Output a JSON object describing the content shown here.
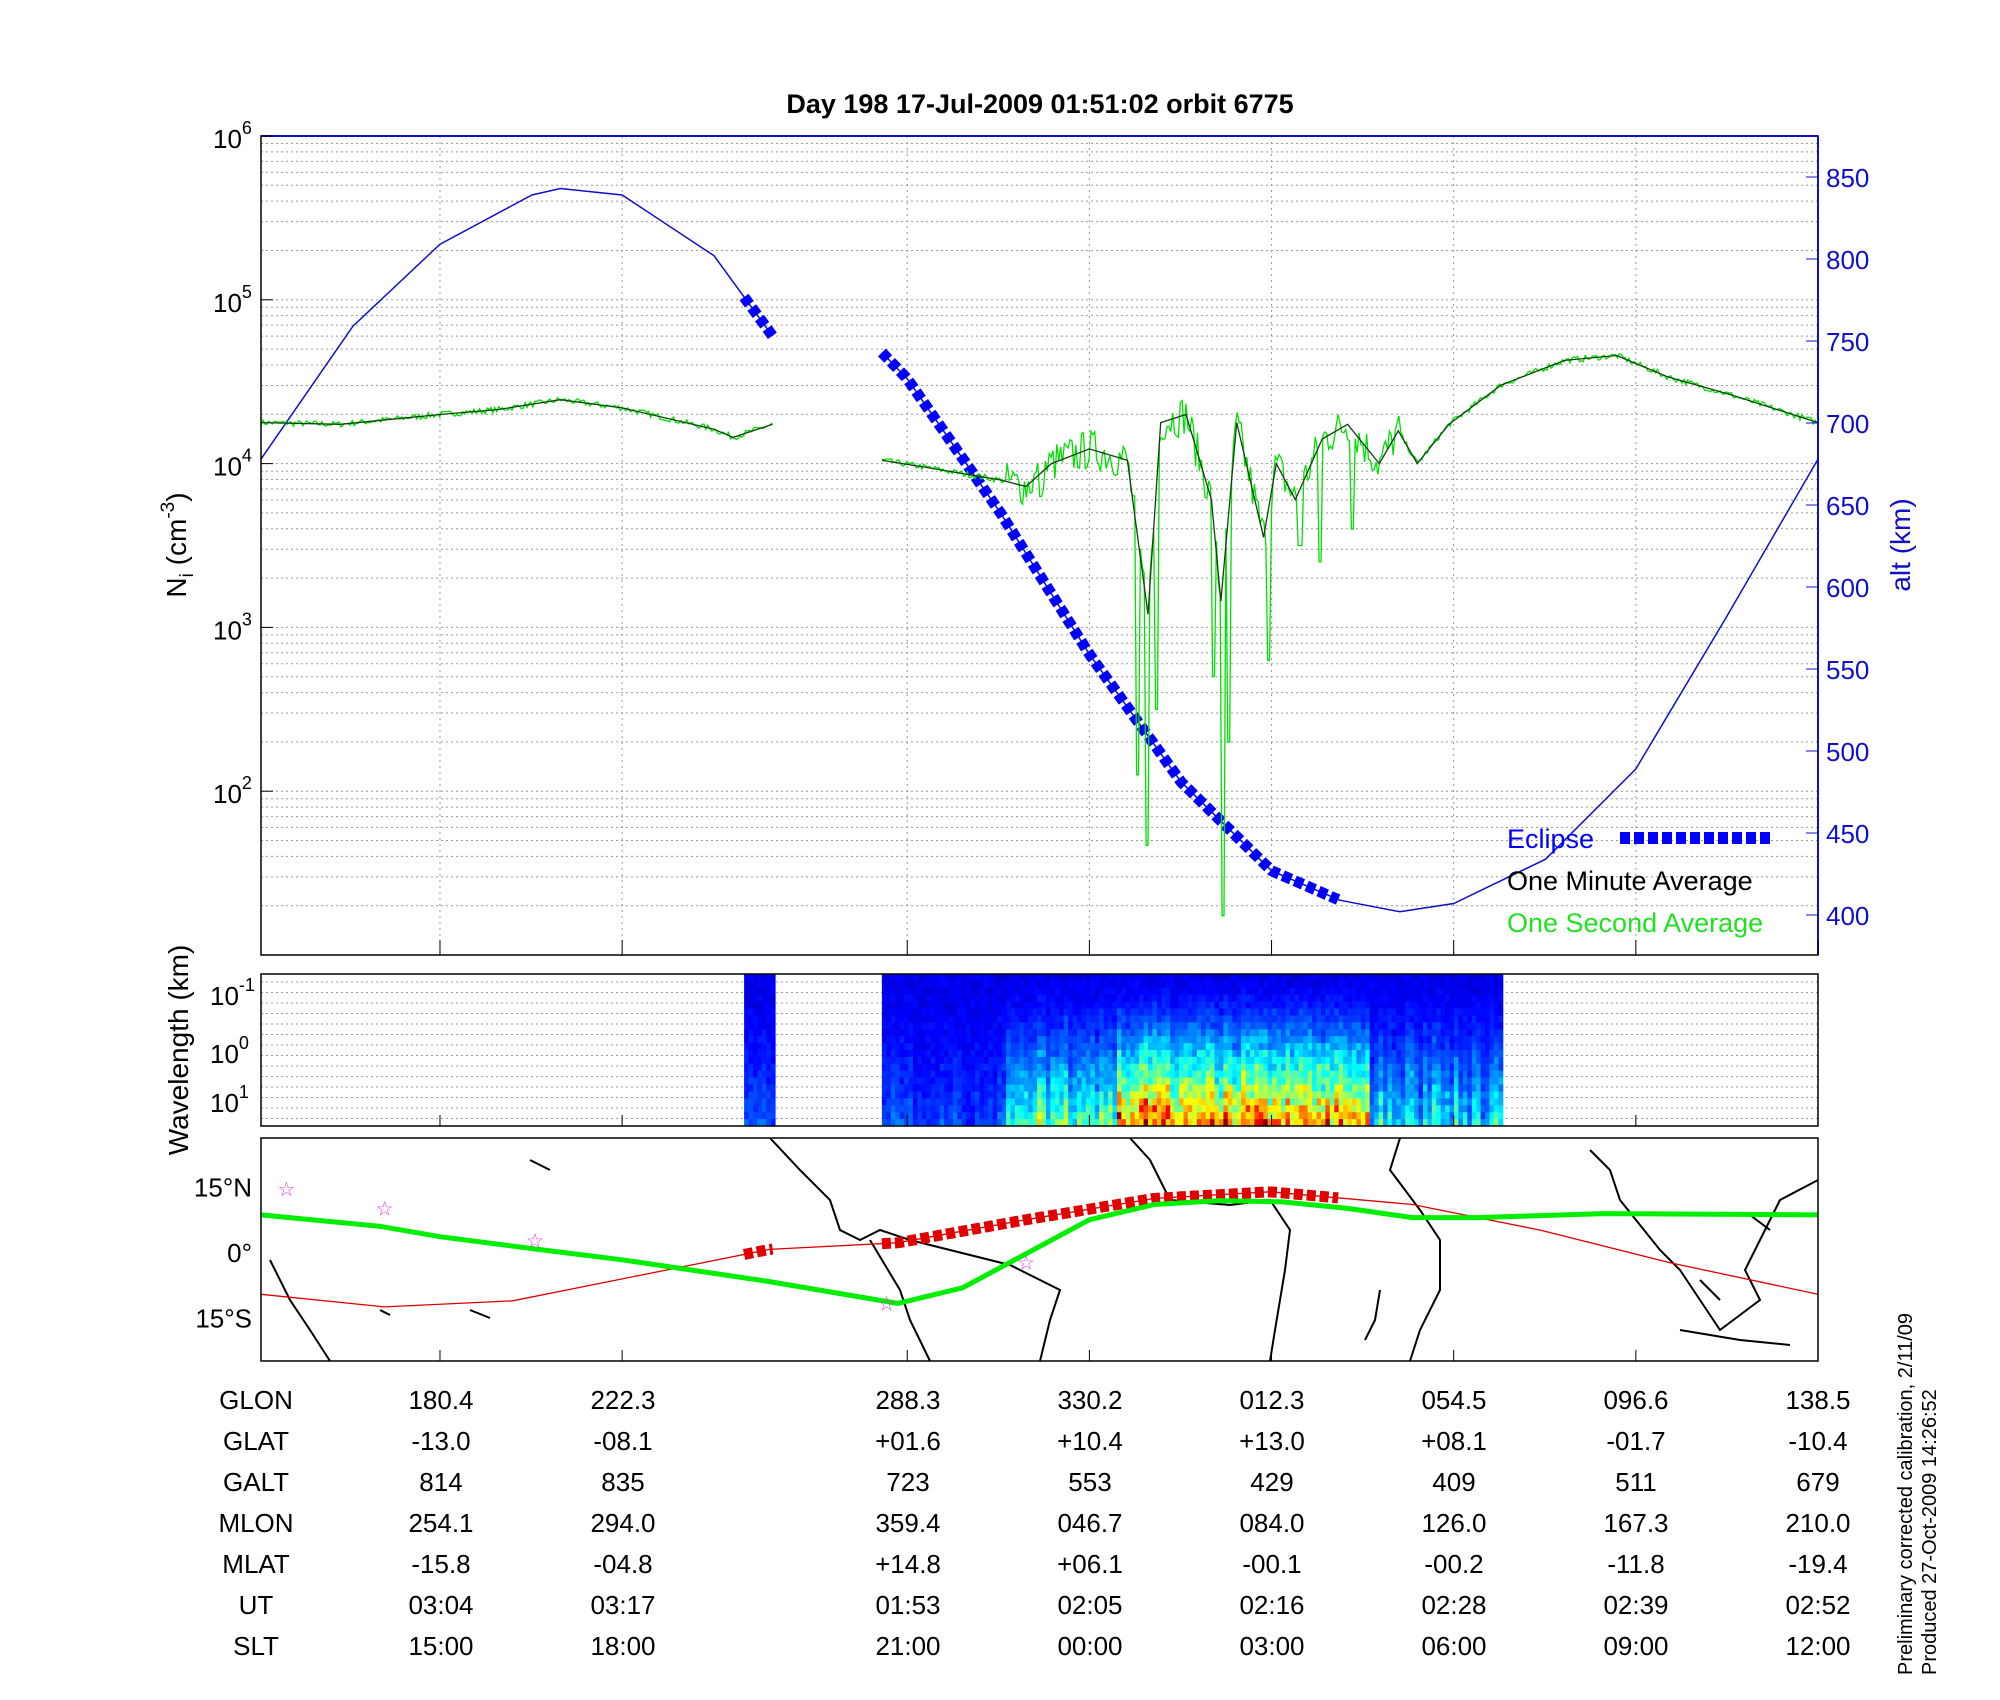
{
  "title": "Day 198  17-Jul-2009 01:51:02   orbit 6775",
  "footer": {
    "line1": "Preliminary corrected calibration, 2/11/09",
    "line2": "Produced 27-Oct-2009 14:26:52"
  },
  "colors": {
    "altitude": "#1010c8",
    "eclipse": "#0000ff",
    "minute_avg": "#000000",
    "second_avg": "#00e000",
    "track_green": "#00ee00",
    "track_red": "#e00000",
    "star": "#e040e0"
  },
  "table": {
    "row_labels": [
      "GLON",
      "GLAT",
      "GALT",
      "MLON",
      "MLAT",
      "UT",
      "SLT"
    ],
    "columns": [
      [
        "180.4",
        "-13.0",
        "814",
        "254.1",
        "-15.8",
        "03:04",
        "15:00"
      ],
      [
        "222.3",
        "-08.1",
        "835",
        "294.0",
        "-04.8",
        "03:17",
        "18:00"
      ],
      [
        "288.3",
        "+01.6",
        "723",
        "359.4",
        "+14.8",
        "01:53",
        "21:00"
      ],
      [
        "330.2",
        "+10.4",
        "553",
        "046.7",
        "+06.1",
        "02:05",
        "00:00"
      ],
      [
        "012.3",
        "+13.0",
        "429",
        "084.0",
        "-00.1",
        "02:16",
        "03:00"
      ],
      [
        "054.5",
        "+08.1",
        "409",
        "126.0",
        "-00.2",
        "02:28",
        "06:00"
      ],
      [
        "096.6",
        "-01.7",
        "511",
        "167.3",
        "-11.8",
        "02:39",
        "09:00"
      ],
      [
        "138.5",
        "-10.4",
        "679",
        "210.0",
        "-19.4",
        "02:52",
        "12:00"
      ]
    ]
  },
  "chart_data": [
    {
      "type": "line",
      "title": "Day 198  17-Jul-2009 01:51:02   orbit 6775",
      "x_units": "minutes from plot start",
      "xlim": [
        0,
        98.3
      ],
      "x_ticks": [
        11.3,
        22.8,
        40.8,
        52.3,
        63.8,
        75.3,
        86.8,
        98.3
      ],
      "ylabel": "N",
      "ylabel_sub": "i",
      "ylabel_unit": " (cm",
      "ylabel_exp": "-3",
      "ylabel_close": ")",
      "y_scale": "log",
      "ylim_log10": [
        1,
        6
      ],
      "y_ticks": [
        {
          "base": "10",
          "exp": "2",
          "log": 2
        },
        {
          "base": "10",
          "exp": "3",
          "log": 3
        },
        {
          "base": "10",
          "exp": "4",
          "log": 4
        },
        {
          "base": "10",
          "exp": "5",
          "log": 5
        },
        {
          "base": "10",
          "exp": "6",
          "log": 6
        }
      ],
      "y2label": "alt (km)",
      "y2lim": [
        376,
        875
      ],
      "y2_ticks": [
        "400",
        "450",
        "500",
        "550",
        "600",
        "650",
        "700",
        "750",
        "800",
        "850"
      ],
      "legend": {
        "placement": "bottom-right",
        "entries": [
          "Eclipse",
          "One Minute Average",
          "One Second Average"
        ]
      },
      "altitude_km": [
        [
          0,
          678
        ],
        [
          5.8,
          759
        ],
        [
          11.3,
          809
        ],
        [
          17.1,
          839
        ],
        [
          18.9,
          843
        ],
        [
          22.8,
          839
        ],
        [
          28.6,
          802
        ],
        [
          32.3,
          753
        ],
        [
          36,
          748
        ],
        [
          39.2,
          743
        ],
        [
          40.8,
          727
        ],
        [
          46.7,
          645
        ],
        [
          52.3,
          559
        ],
        [
          58.1,
          481
        ],
        [
          63.8,
          427
        ],
        [
          68.1,
          409
        ],
        [
          71.9,
          402
        ],
        [
          75.3,
          407
        ],
        [
          81.1,
          434
        ],
        [
          86.8,
          489
        ],
        [
          92.6,
          583
        ],
        [
          98.3,
          678
        ]
      ],
      "altitude_gap": [
        32.3,
        39.2
      ],
      "eclipse_segments": [
        [
          30.5,
          32.3
        ],
        [
          39.2,
          68.1
        ]
      ],
      "minute_avg_log10": [
        [
          [
            0,
            4.25
          ],
          [
            5,
            4.24
          ],
          [
            11.3,
            4.3
          ],
          [
            15,
            4.33
          ],
          [
            18.9,
            4.39
          ],
          [
            22.8,
            4.34
          ],
          [
            28.6,
            4.21
          ],
          [
            29.8,
            4.16
          ],
          [
            32.3,
            4.24
          ]
        ],
        [
          [
            39.2,
            4.02
          ],
          [
            41.8,
            3.98
          ],
          [
            46.7,
            3.9
          ],
          [
            48.3,
            3.86
          ],
          [
            49.9,
            4.0
          ],
          [
            52.3,
            4.09
          ],
          [
            54.7,
            4.02
          ],
          [
            56,
            3.08
          ],
          [
            56.8,
            4.25
          ],
          [
            58.4,
            4.3
          ],
          [
            60,
            3.78
          ],
          [
            60.6,
            3.16
          ],
          [
            61.6,
            4.25
          ],
          [
            63.3,
            3.55
          ],
          [
            64.1,
            4.0
          ],
          [
            65.3,
            3.78
          ],
          [
            67,
            4.15
          ],
          [
            68.6,
            4.24
          ],
          [
            70.6,
            4.0
          ],
          [
            71.8,
            4.2
          ],
          [
            73,
            4.0
          ],
          [
            75,
            4.24
          ],
          [
            78.3,
            4.48
          ],
          [
            82.3,
            4.63
          ],
          [
            85.6,
            4.66
          ],
          [
            88.8,
            4.53
          ],
          [
            92.8,
            4.42
          ],
          [
            98.3,
            4.25
          ]
        ]
      ],
      "second_avg_spikes_log10": [
        [
          49.2,
          3.8
        ],
        [
          55.3,
          2.1
        ],
        [
          55.9,
          1.67
        ],
        [
          56.5,
          2.5
        ],
        [
          60.1,
          2.7
        ],
        [
          60.7,
          1.24
        ],
        [
          61.1,
          2.3
        ],
        [
          63.6,
          2.8
        ],
        [
          65.6,
          3.5
        ],
        [
          66.9,
          3.4
        ],
        [
          68.9,
          3.6
        ]
      ]
    },
    {
      "type": "heatmap",
      "ylabel": "Wavelength (km)",
      "y_ticks": [
        {
          "base": "10",
          "exp": "-1"
        },
        {
          "base": "10",
          "exp": "0"
        },
        {
          "base": "10",
          "exp": "1"
        }
      ],
      "segments": [
        [
          30.5,
          32.3
        ],
        [
          39.2,
          78.4
        ]
      ],
      "high_activity_range": [
        54,
        70
      ],
      "colormap": "jet"
    },
    {
      "type": "line",
      "ylabel_ticks": [
        "15°N",
        "0°",
        "15°S"
      ],
      "ylim_deg": [
        -20,
        20
      ],
      "green_track_lat": [
        [
          0,
          8.5
        ],
        [
          7.5,
          5.9
        ],
        [
          11.3,
          3.5
        ],
        [
          17.5,
          0.6
        ],
        [
          22.8,
          -1.8
        ],
        [
          32.1,
          -6.8
        ],
        [
          40.2,
          -11.8
        ],
        [
          44.3,
          -8.2
        ],
        [
          52.3,
          7.4
        ],
        [
          56.4,
          10.9
        ],
        [
          60.5,
          11.8
        ],
        [
          64.5,
          11.5
        ],
        [
          68.6,
          10
        ],
        [
          72.7,
          7.9
        ],
        [
          76.7,
          7.9
        ],
        [
          84.8,
          8.8
        ],
        [
          98.3,
          8.5
        ]
      ],
      "red_track_lat": [
        [
          0,
          -9.7
        ],
        [
          7.8,
          -12.6
        ],
        [
          15.9,
          -11.2
        ],
        [
          24,
          -5.3
        ],
        [
          32.1,
          0.6
        ],
        [
          40.2,
          2.1
        ],
        [
          48.3,
          7.4
        ],
        [
          56.4,
          12.3
        ],
        [
          63.7,
          13.8
        ],
        [
          72.7,
          10.9
        ],
        [
          80.8,
          5
        ],
        [
          88.9,
          -2.4
        ],
        [
          98.3,
          -9.7
        ]
      ],
      "red_thick_segments": [
        [
          30.5,
          32.3
        ],
        [
          39.2,
          68.1
        ]
      ],
      "stars": [
        [
          1.6,
          14.4
        ],
        [
          7.8,
          10
        ],
        [
          17.3,
          2.6
        ],
        [
          39.5,
          -11.8
        ],
        [
          48.3,
          -2.4
        ]
      ]
    }
  ]
}
